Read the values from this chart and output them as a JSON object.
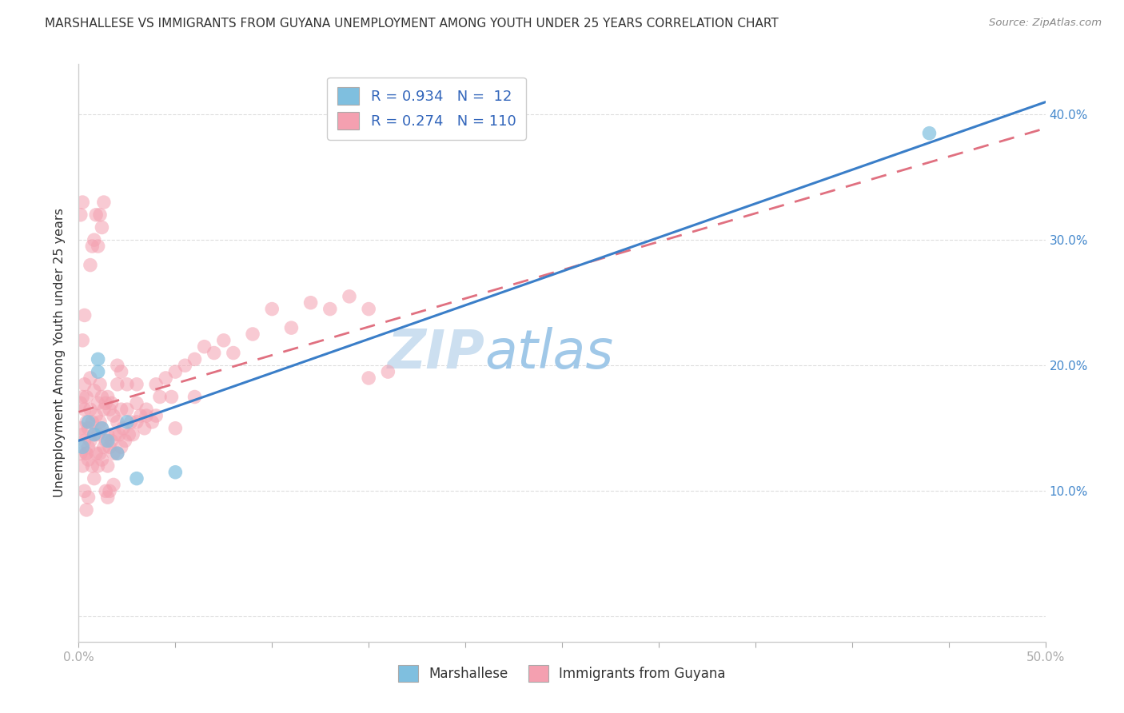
{
  "title": "MARSHALLESE VS IMMIGRANTS FROM GUYANA UNEMPLOYMENT AMONG YOUTH UNDER 25 YEARS CORRELATION CHART",
  "source": "Source: ZipAtlas.com",
  "ylabel": "Unemployment Among Youth under 25 years",
  "xlim": [
    0.0,
    0.5
  ],
  "ylim": [
    -0.02,
    0.44
  ],
  "color_marshallese": "#7fbfdf",
  "color_guyana": "#f4a0b0",
  "line_color_marshallese": "#3a7ec8",
  "line_color_guyana": "#e07080",
  "watermark": "ZIPatlas",
  "watermark_color": "#cce0f0",
  "background_color": "#ffffff",
  "grid_color": "#dddddd",
  "marshallese_x": [
    0.002,
    0.005,
    0.008,
    0.01,
    0.01,
    0.012,
    0.015,
    0.02,
    0.025,
    0.03,
    0.05,
    0.44
  ],
  "marshallese_y": [
    0.135,
    0.155,
    0.145,
    0.195,
    0.205,
    0.15,
    0.14,
    0.13,
    0.155,
    0.11,
    0.115,
    0.385
  ],
  "guyana_x": [
    0.001,
    0.001,
    0.001,
    0.002,
    0.002,
    0.002,
    0.003,
    0.003,
    0.003,
    0.004,
    0.004,
    0.004,
    0.005,
    0.005,
    0.005,
    0.006,
    0.006,
    0.006,
    0.007,
    0.007,
    0.008,
    0.008,
    0.008,
    0.009,
    0.009,
    0.01,
    0.01,
    0.01,
    0.011,
    0.011,
    0.011,
    0.012,
    0.012,
    0.012,
    0.013,
    0.013,
    0.014,
    0.014,
    0.015,
    0.015,
    0.015,
    0.016,
    0.016,
    0.017,
    0.017,
    0.018,
    0.018,
    0.019,
    0.02,
    0.02,
    0.02,
    0.021,
    0.022,
    0.022,
    0.023,
    0.024,
    0.025,
    0.026,
    0.027,
    0.028,
    0.03,
    0.03,
    0.032,
    0.034,
    0.035,
    0.038,
    0.04,
    0.042,
    0.045,
    0.048,
    0.05,
    0.055,
    0.06,
    0.065,
    0.07,
    0.075,
    0.08,
    0.09,
    0.1,
    0.11,
    0.12,
    0.13,
    0.14,
    0.15,
    0.002,
    0.003,
    0.004,
    0.005,
    0.006,
    0.007,
    0.008,
    0.009,
    0.01,
    0.011,
    0.012,
    0.013,
    0.014,
    0.015,
    0.016,
    0.018,
    0.02,
    0.022,
    0.025,
    0.03,
    0.035,
    0.04,
    0.05,
    0.06,
    0.001,
    0.002,
    0.003,
    0.004,
    0.15,
    0.16
  ],
  "guyana_y": [
    0.15,
    0.17,
    0.13,
    0.12,
    0.145,
    0.175,
    0.14,
    0.165,
    0.185,
    0.13,
    0.155,
    0.175,
    0.095,
    0.125,
    0.15,
    0.14,
    0.165,
    0.19,
    0.12,
    0.155,
    0.11,
    0.145,
    0.18,
    0.13,
    0.16,
    0.12,
    0.145,
    0.17,
    0.13,
    0.155,
    0.185,
    0.125,
    0.15,
    0.175,
    0.135,
    0.165,
    0.14,
    0.17,
    0.12,
    0.145,
    0.175,
    0.135,
    0.165,
    0.14,
    0.17,
    0.13,
    0.16,
    0.145,
    0.13,
    0.155,
    0.185,
    0.145,
    0.135,
    0.165,
    0.15,
    0.14,
    0.165,
    0.145,
    0.155,
    0.145,
    0.155,
    0.185,
    0.16,
    0.15,
    0.165,
    0.155,
    0.185,
    0.175,
    0.19,
    0.175,
    0.195,
    0.2,
    0.205,
    0.215,
    0.21,
    0.22,
    0.21,
    0.225,
    0.245,
    0.23,
    0.25,
    0.245,
    0.255,
    0.245,
    0.22,
    0.24,
    0.13,
    0.135,
    0.28,
    0.295,
    0.3,
    0.32,
    0.295,
    0.32,
    0.31,
    0.33,
    0.1,
    0.095,
    0.1,
    0.105,
    0.2,
    0.195,
    0.185,
    0.17,
    0.16,
    0.16,
    0.15,
    0.175,
    0.32,
    0.33,
    0.1,
    0.085,
    0.19,
    0.195
  ]
}
